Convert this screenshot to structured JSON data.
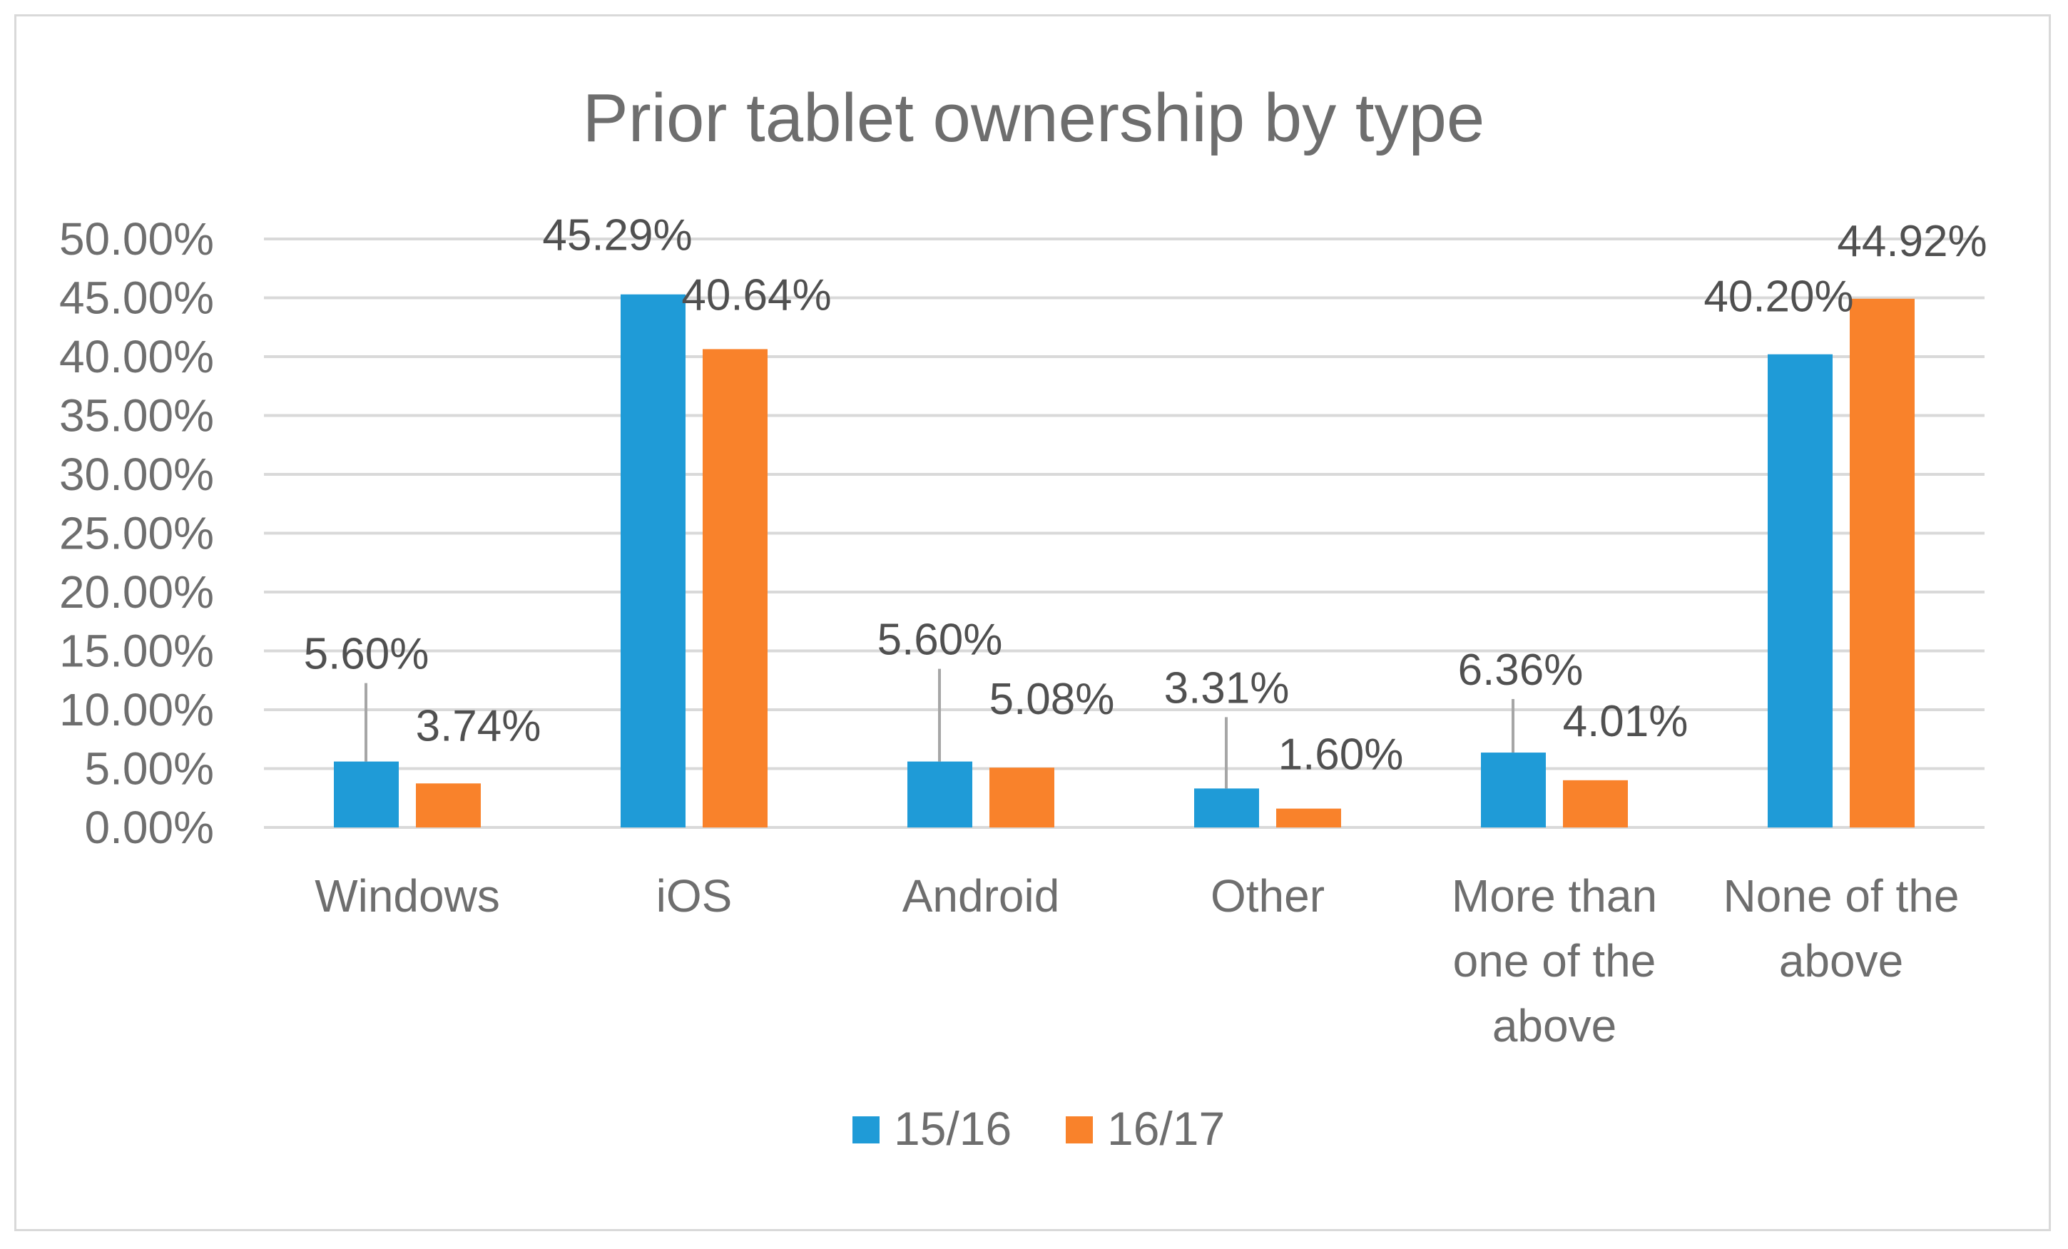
{
  "chart_data": {
    "type": "bar",
    "title": "Prior tablet ownership by type",
    "xlabel": "",
    "ylabel": "",
    "categories": [
      [
        "Windows"
      ],
      [
        "iOS"
      ],
      [
        "Android"
      ],
      [
        "Other"
      ],
      [
        "More than",
        "one of the",
        "above"
      ],
      [
        "None of the",
        "above"
      ]
    ],
    "series": [
      {
        "name": "15/16",
        "color": "#1f9bd7",
        "values": [
          5.6,
          45.29,
          5.6,
          3.31,
          6.36,
          40.2
        ],
        "labels": [
          "5.60%",
          "45.29%",
          "5.60%",
          "3.31%",
          "6.36%",
          "40.20%"
        ]
      },
      {
        "name": "16/17",
        "color": "#f9822b",
        "values": [
          3.74,
          40.64,
          5.08,
          1.6,
          4.01,
          44.92
        ],
        "labels": [
          "3.74%",
          "40.64%",
          "5.08%",
          "1.60%",
          "4.01%",
          "44.92%"
        ]
      }
    ],
    "ylim": [
      0,
      50
    ],
    "yticks": [
      0,
      5,
      10,
      15,
      20,
      25,
      30,
      35,
      40,
      45,
      50
    ],
    "ytick_labels": [
      "0.00%",
      "5.00%",
      "10.00%",
      "15.00%",
      "20.00%",
      "25.00%",
      "30.00%",
      "35.00%",
      "40.00%",
      "45.00%",
      "50.00%"
    ],
    "grid": true,
    "legend_position": "bottom",
    "gridline_color": "#d9d9d9",
    "leader_line_color": "#a6a6a6"
  }
}
